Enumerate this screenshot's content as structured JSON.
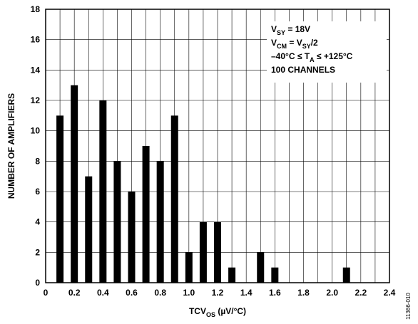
{
  "chart_data": {
    "type": "bar",
    "x": [
      0.1,
      0.2,
      0.3,
      0.4,
      0.5,
      0.6,
      0.7,
      0.8,
      0.9,
      1.0,
      1.1,
      1.2,
      1.3,
      1.5,
      1.6,
      2.1
    ],
    "values": [
      11,
      13,
      7,
      12,
      8,
      6,
      9,
      8,
      11,
      2,
      4,
      4,
      1,
      2,
      1,
      1
    ],
    "xlim": [
      0,
      2.4
    ],
    "ylim": [
      0,
      18
    ],
    "xticks": [
      "0",
      "0.2",
      "0.4",
      "0.6",
      "0.8",
      "1.0",
      "1.2",
      "1.4",
      "1.6",
      "1.8",
      "2.0",
      "2.2",
      "2.4"
    ],
    "yticks": [
      "0",
      "2",
      "4",
      "6",
      "8",
      "10",
      "12",
      "14",
      "16",
      "18"
    ],
    "xlabel": {
      "main": "TCV",
      "sub": "OS",
      "unit": " (µV/°C)"
    },
    "ylabel": "NUMBER OF AMPLIFIERS",
    "grid": true,
    "bar_color": "#000000",
    "legend_placement": "top-right",
    "annotations": [
      {
        "parts": [
          {
            "t": "V"
          },
          {
            "t": "SY",
            "sub": true
          },
          {
            "t": " = 18V"
          }
        ]
      },
      {
        "parts": [
          {
            "t": "V"
          },
          {
            "t": "CM",
            "sub": true
          },
          {
            "t": " = V"
          },
          {
            "t": "SY",
            "sub": true
          },
          {
            "t": "/2"
          }
        ]
      },
      {
        "parts": [
          {
            "t": "–40°C ≤ T"
          },
          {
            "t": "A",
            "sub": true
          },
          {
            "t": " ≤ +125°C"
          }
        ]
      },
      {
        "parts": [
          {
            "t": "100 CHANNELS"
          }
        ]
      }
    ]
  },
  "figure_id": "11366-010"
}
